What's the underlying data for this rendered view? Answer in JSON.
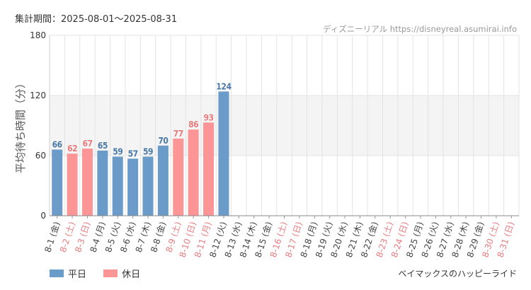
{
  "header": {
    "period": "集計期間：2025-08-01～2025-08-31",
    "source": "ディズニーリアル https://disneyreal.asumirai.info"
  },
  "footer": {
    "ride_name": "ベイマックスのハッピーライド"
  },
  "legend": [
    {
      "label": "平日",
      "color": "#6b9bc8"
    },
    {
      "label": "休日",
      "color": "#fb9596"
    }
  ],
  "colors": {
    "weekday_bar": "#6b9bc8",
    "holiday_bar": "#fb9596",
    "weekday_text": "#4a79a8",
    "holiday_text": "#e87c7f",
    "band": "#f4f4f4",
    "grid": "#e3e3e3"
  },
  "chart_data": {
    "type": "bar",
    "ylabel": "平均待ち時間（分）",
    "ylim": [
      0,
      180
    ],
    "yticks": [
      0,
      60,
      120,
      180
    ],
    "shaded_band": [
      60,
      120
    ],
    "legend_position": "bottom-left",
    "categories": [
      "8-1 (金)",
      "8-2 (土)",
      "8-3 (日)",
      "8-4 (月)",
      "8-5 (火)",
      "8-6 (水)",
      "8-7 (木)",
      "8-8 (金)",
      "8-9 (土)",
      "8-10 (日)",
      "8-11 (月)",
      "8-12 (火)",
      "8-13 (水)",
      "8-14 (木)",
      "8-15 (金)",
      "8-16 (土)",
      "8-17 (日)",
      "8-18 (月)",
      "8-19 (火)",
      "8-20 (水)",
      "8-21 (木)",
      "8-22 (金)",
      "8-23 (土)",
      "8-24 (日)",
      "8-25 (月)",
      "8-26 (火)",
      "8-27 (水)",
      "8-28 (木)",
      "8-29 (金)",
      "8-30 (土)",
      "8-31 (日)"
    ],
    "day_type": [
      "平日",
      "休日",
      "休日",
      "平日",
      "平日",
      "平日",
      "平日",
      "平日",
      "休日",
      "休日",
      "休日",
      "平日",
      "平日",
      "平日",
      "平日",
      "休日",
      "休日",
      "平日",
      "平日",
      "平日",
      "平日",
      "平日",
      "休日",
      "休日",
      "平日",
      "平日",
      "平日",
      "平日",
      "平日",
      "休日",
      "休日"
    ],
    "values": [
      66,
      62,
      67,
      65,
      59,
      57,
      59,
      70,
      77,
      86,
      93,
      124,
      null,
      null,
      null,
      null,
      null,
      null,
      null,
      null,
      null,
      null,
      null,
      null,
      null,
      null,
      null,
      null,
      null,
      null,
      null
    ]
  }
}
